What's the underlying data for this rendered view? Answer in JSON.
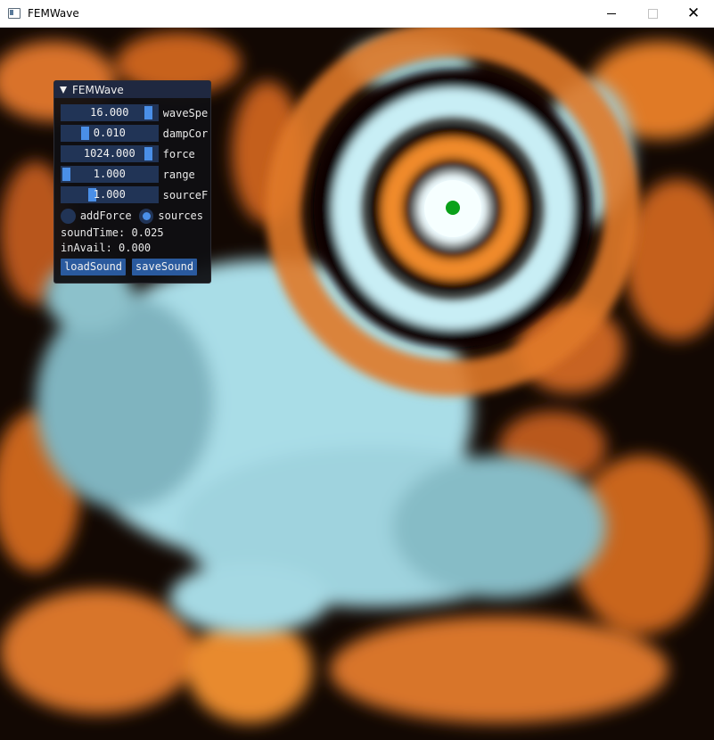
{
  "window": {
    "title": "FEMWave",
    "icon": "app-window-icon",
    "close_symbol": "✕"
  },
  "panel": {
    "title": "FEMWave",
    "sliders": [
      {
        "value": "16.000",
        "label": "waveSpe",
        "fill": 0.95
      },
      {
        "value": "0.010",
        "label": "dampCor",
        "fill": 0.22
      },
      {
        "value": "1024.000",
        "label": "force",
        "fill": 0.95
      },
      {
        "value": "1.000",
        "label": "range",
        "fill": 0.0
      },
      {
        "value": "1.000",
        "label": "sourceF",
        "fill": 0.3
      }
    ],
    "radios": [
      {
        "label": "addForce",
        "selected": false
      },
      {
        "label": "sources",
        "selected": true
      }
    ],
    "sound_time": "soundTime: 0.025",
    "in_avail": "inAvail: 0.000",
    "buttons": {
      "load": "loadSound",
      "save": "saveSound"
    }
  },
  "scene": {
    "source_marker_color": "#0aa11a",
    "colors": {
      "positive": "#e8822a",
      "negative": "#b9ecf4",
      "zero": "#000000"
    }
  }
}
